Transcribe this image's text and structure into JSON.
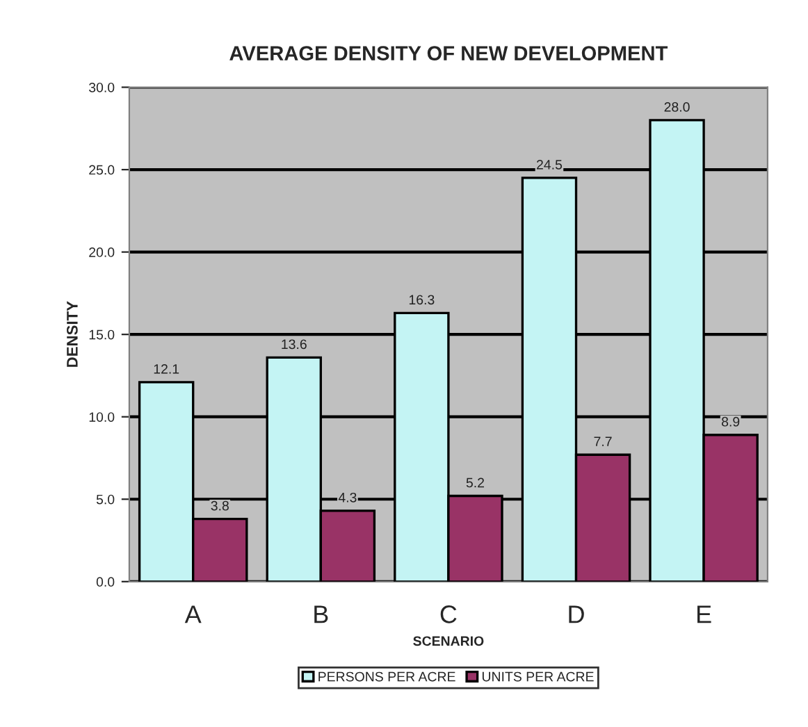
{
  "chart_data": {
    "type": "bar",
    "title": "AVERAGE DENSITY OF NEW DEVELOPMENT",
    "xlabel": "SCENARIO",
    "ylabel": "DENSITY",
    "categories": [
      "A",
      "B",
      "C",
      "D",
      "E"
    ],
    "series": [
      {
        "name": "PERSONS PER ACRE",
        "color": "#c4f4f4",
        "values": [
          12.1,
          13.6,
          16.3,
          24.5,
          28.0
        ],
        "value_labels": [
          "12.1",
          "13.6",
          "16.3",
          "24.5",
          "28.0"
        ]
      },
      {
        "name": "UNITS PER ACRE",
        "color": "#993366",
        "values": [
          3.8,
          4.3,
          5.2,
          7.7,
          8.9
        ],
        "value_labels": [
          "3.8",
          "4.3",
          "5.2",
          "7.7",
          "8.9"
        ]
      }
    ],
    "ylim": [
      0,
      30
    ],
    "yticks": [
      {
        "value": 0,
        "label": "0.0"
      },
      {
        "value": 5,
        "label": "5.0"
      },
      {
        "value": 10,
        "label": "10.0"
      },
      {
        "value": 15,
        "label": "15.0"
      },
      {
        "value": 20,
        "label": "20.0"
      },
      {
        "value": 25,
        "label": "25.0"
      },
      {
        "value": 30,
        "label": "30.0"
      }
    ],
    "grid": "y",
    "legend": "bottom"
  }
}
